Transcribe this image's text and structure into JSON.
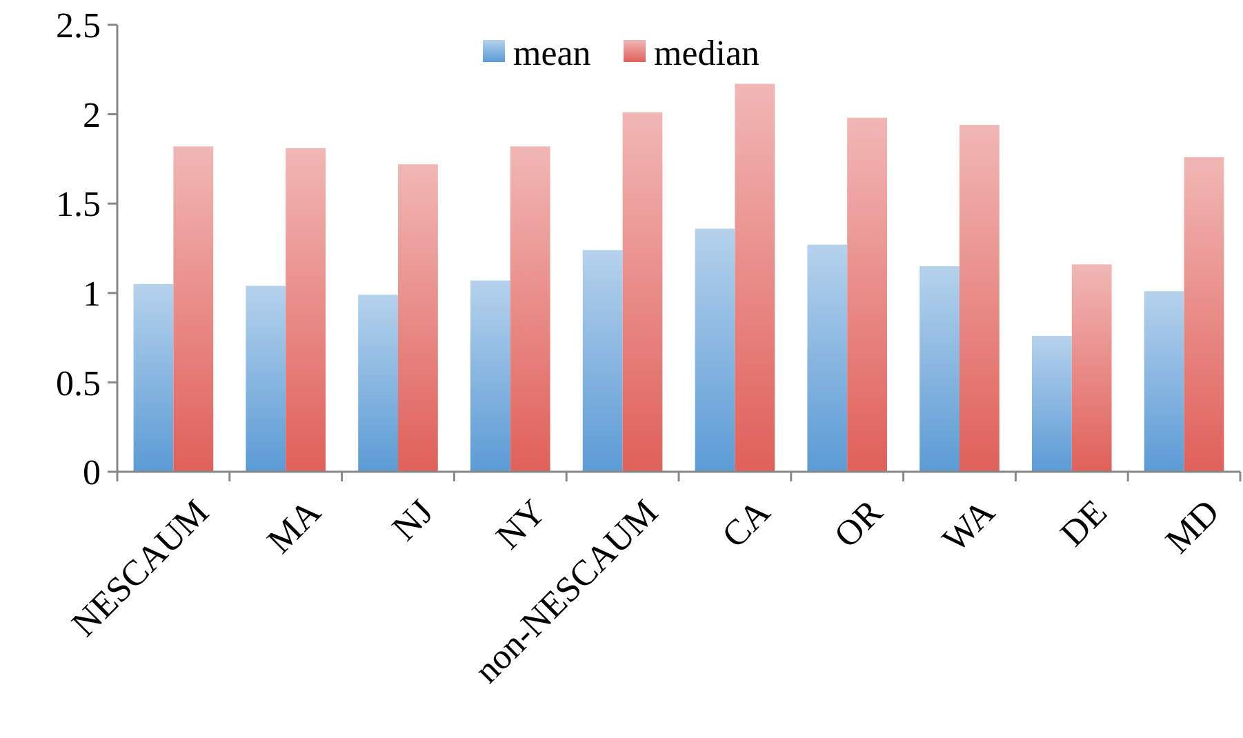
{
  "chart_data": {
    "type": "bar",
    "categories": [
      "NESCAUM",
      "MA",
      "NJ",
      "NY",
      "non-NESCAUM",
      "CA",
      "OR",
      "WA",
      "DE",
      "MD"
    ],
    "series": [
      {
        "name": "mean",
        "color": "#5b9bd5",
        "values": [
          1.05,
          1.04,
          0.99,
          1.07,
          1.24,
          1.36,
          1.27,
          1.15,
          0.76,
          1.01
        ]
      },
      {
        "name": "median",
        "color": "#e0605a",
        "values": [
          1.82,
          1.81,
          1.72,
          1.82,
          2.01,
          2.17,
          1.98,
          1.94,
          1.16,
          1.76
        ]
      }
    ],
    "ylim": [
      0,
      2.5
    ],
    "yticks": [
      0,
      0.5,
      1,
      1.5,
      2,
      2.5
    ],
    "grid": false,
    "legend": "top"
  }
}
